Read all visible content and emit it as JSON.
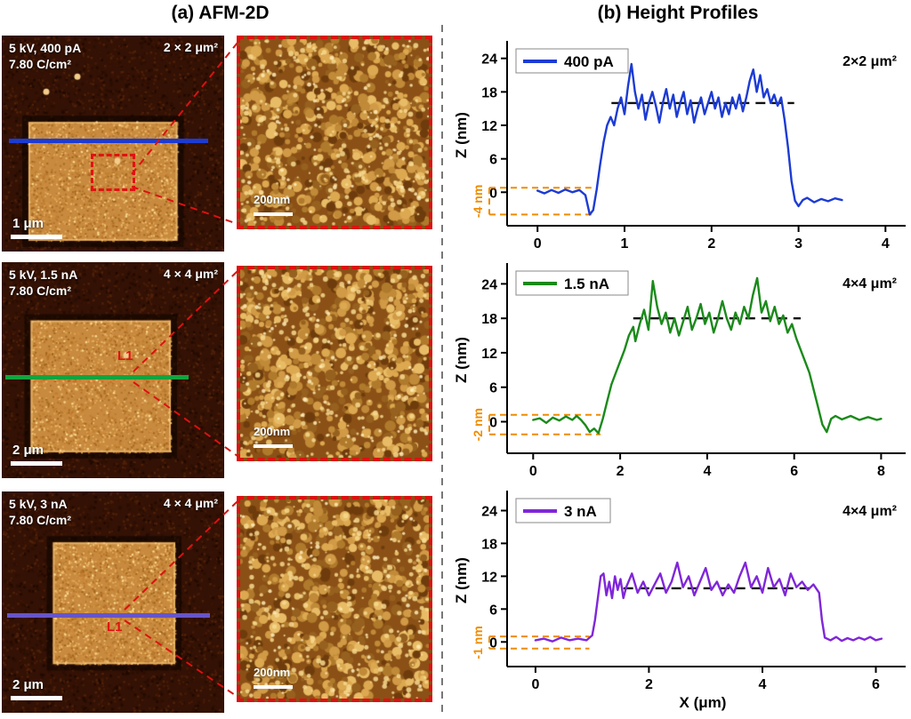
{
  "panels": {
    "a_title": "(a) AFM-2D",
    "b_title": "(b) Height Profiles"
  },
  "colors": {
    "annotation_orange": "#F08C00",
    "dashed_red": "#DD1111",
    "plateau_dash": "#111111"
  },
  "afm_rows": [
    {
      "params_line1": "5 kV, 400 pA",
      "params_line2": "7.80 C/cm²",
      "area_label": "2 × 2 μm²",
      "scale_bar_label": "1 μm",
      "inset_scale_label": "200nm",
      "profile_line_color": "#1C3BD4",
      "profile_label": ""
    },
    {
      "params_line1": "5 kV, 1.5 nA",
      "params_line2": "7.80 C/cm²",
      "area_label": "4 × 4 μm²",
      "scale_bar_label": "2 μm",
      "inset_scale_label": "200nm",
      "profile_line_color": "#12A43E",
      "profile_label": "L1"
    },
    {
      "params_line1": "5 kV, 3 nA",
      "params_line2": "7.80 C/cm²",
      "area_label": "4 × 4 μm²",
      "scale_bar_label": "2 μm",
      "inset_scale_label": "200nm",
      "profile_line_color": "#6655C8",
      "profile_label": "L1"
    }
  ],
  "chart_data": [
    {
      "type": "line",
      "legend": "400 pA",
      "color": "#1C3BD4",
      "area_annotation": "2×2 μm²",
      "ylabel": "Z (nm)",
      "xlabel": "",
      "xticks": [
        0,
        1,
        2,
        3,
        4
      ],
      "yticks": [
        0,
        6,
        12,
        18,
        24
      ],
      "xlim": [
        -0.35,
        4.15
      ],
      "ylim": [
        -6,
        26.5
      ],
      "plateau": {
        "z": 16,
        "x0": 0.85,
        "x1": 2.95
      },
      "step": {
        "label": "-4 nm",
        "x1": 0.62,
        "z0": -4,
        "z1": 0.8
      },
      "points": [
        [
          0,
          0.3
        ],
        [
          0.08,
          -0.2
        ],
        [
          0.16,
          0.4
        ],
        [
          0.24,
          -0.1
        ],
        [
          0.32,
          0.5
        ],
        [
          0.4,
          0
        ],
        [
          0.48,
          0.4
        ],
        [
          0.55,
          -0.5
        ],
        [
          0.6,
          -4
        ],
        [
          0.64,
          -3.2
        ],
        [
          0.68,
          0.5
        ],
        [
          0.72,
          5
        ],
        [
          0.76,
          9
        ],
        [
          0.8,
          12
        ],
        [
          0.84,
          13.5
        ],
        [
          0.88,
          12
        ],
        [
          0.92,
          15
        ],
        [
          0.96,
          17
        ],
        [
          1,
          14
        ],
        [
          1.04,
          19
        ],
        [
          1.08,
          23
        ],
        [
          1.12,
          18
        ],
        [
          1.16,
          15
        ],
        [
          1.2,
          17.5
        ],
        [
          1.24,
          13
        ],
        [
          1.28,
          16
        ],
        [
          1.32,
          18
        ],
        [
          1.36,
          15.5
        ],
        [
          1.4,
          12.5
        ],
        [
          1.44,
          16
        ],
        [
          1.48,
          18.5
        ],
        [
          1.52,
          15
        ],
        [
          1.56,
          17.5
        ],
        [
          1.6,
          13.5
        ],
        [
          1.64,
          16
        ],
        [
          1.68,
          18
        ],
        [
          1.72,
          14
        ],
        [
          1.76,
          16.5
        ],
        [
          1.8,
          12.5
        ],
        [
          1.84,
          15
        ],
        [
          1.88,
          17
        ],
        [
          1.92,
          14
        ],
        [
          1.96,
          16
        ],
        [
          2,
          18
        ],
        [
          2.04,
          15
        ],
        [
          2.08,
          17
        ],
        [
          2.12,
          13.5
        ],
        [
          2.16,
          16
        ],
        [
          2.2,
          14
        ],
        [
          2.24,
          17
        ],
        [
          2.28,
          15
        ],
        [
          2.32,
          17.5
        ],
        [
          2.36,
          14.5
        ],
        [
          2.4,
          17
        ],
        [
          2.44,
          20
        ],
        [
          2.48,
          22
        ],
        [
          2.52,
          18
        ],
        [
          2.56,
          21
        ],
        [
          2.6,
          17
        ],
        [
          2.64,
          18.5
        ],
        [
          2.68,
          16
        ],
        [
          2.72,
          17.5
        ],
        [
          2.76,
          15.5
        ],
        [
          2.8,
          17
        ],
        [
          2.84,
          13
        ],
        [
          2.88,
          8
        ],
        [
          2.92,
          2
        ],
        [
          2.96,
          -1.5
        ],
        [
          3,
          -2.5
        ],
        [
          3.05,
          -1.4
        ],
        [
          3.1,
          -1
        ],
        [
          3.18,
          -1.8
        ],
        [
          3.26,
          -1.2
        ],
        [
          3.34,
          -1.6
        ],
        [
          3.42,
          -1.1
        ],
        [
          3.5,
          -1.4
        ]
      ]
    },
    {
      "type": "line",
      "legend": "1.5 nA",
      "color": "#1A8A1A",
      "area_annotation": "4×4 μm²",
      "ylabel": "Z (nm)",
      "xlabel": "",
      "xticks": [
        0,
        2,
        4,
        6,
        8
      ],
      "yticks": [
        0,
        6,
        12,
        18,
        24
      ],
      "xlim": [
        -0.6,
        8.4
      ],
      "ylim": [
        -5.5,
        27
      ],
      "plateau": {
        "z": 18,
        "x0": 2.3,
        "x1": 6.15
      },
      "step": {
        "label": "-2 nm",
        "x1": 1.55,
        "z0": -2.2,
        "z1": 1.2
      },
      "points": [
        [
          0,
          0.3
        ],
        [
          0.15,
          0.6
        ],
        [
          0.3,
          -0.2
        ],
        [
          0.45,
          0.7
        ],
        [
          0.6,
          0.2
        ],
        [
          0.75,
          0.9
        ],
        [
          0.9,
          0.3
        ],
        [
          1,
          1
        ],
        [
          1.1,
          0.3
        ],
        [
          1.2,
          -0.6
        ],
        [
          1.3,
          -1.8
        ],
        [
          1.4,
          -1.2
        ],
        [
          1.5,
          -2
        ],
        [
          1.6,
          0.5
        ],
        [
          1.7,
          3.5
        ],
        [
          1.8,
          6.5
        ],
        [
          1.9,
          8.5
        ],
        [
          2,
          10.5
        ],
        [
          2.1,
          12.5
        ],
        [
          2.2,
          15
        ],
        [
          2.3,
          16.5
        ],
        [
          2.35,
          14
        ],
        [
          2.45,
          17
        ],
        [
          2.55,
          19.5
        ],
        [
          2.65,
          16
        ],
        [
          2.75,
          24.5
        ],
        [
          2.85,
          20
        ],
        [
          2.95,
          17
        ],
        [
          3.05,
          19
        ],
        [
          3.15,
          15.5
        ],
        [
          3.25,
          18
        ],
        [
          3.35,
          15
        ],
        [
          3.45,
          17.5
        ],
        [
          3.55,
          20
        ],
        [
          3.65,
          16
        ],
        [
          3.75,
          18
        ],
        [
          3.85,
          20.5
        ],
        [
          3.95,
          17
        ],
        [
          4.05,
          19
        ],
        [
          4.15,
          15.5
        ],
        [
          4.25,
          18
        ],
        [
          4.35,
          21
        ],
        [
          4.45,
          18
        ],
        [
          4.55,
          16
        ],
        [
          4.65,
          19
        ],
        [
          4.75,
          17
        ],
        [
          4.85,
          20
        ],
        [
          4.95,
          18
        ],
        [
          5.05,
          22
        ],
        [
          5.15,
          25
        ],
        [
          5.25,
          19
        ],
        [
          5.35,
          21
        ],
        [
          5.45,
          17.5
        ],
        [
          5.55,
          20
        ],
        [
          5.65,
          17
        ],
        [
          5.75,
          18.5
        ],
        [
          5.85,
          15.5
        ],
        [
          5.95,
          17
        ],
        [
          6.05,
          14.5
        ],
        [
          6.15,
          12.5
        ],
        [
          6.25,
          10.5
        ],
        [
          6.35,
          8.5
        ],
        [
          6.45,
          5.5
        ],
        [
          6.55,
          2.5
        ],
        [
          6.65,
          -0.5
        ],
        [
          6.75,
          -1.8
        ],
        [
          6.85,
          0.5
        ],
        [
          6.95,
          1
        ],
        [
          7.1,
          0.4
        ],
        [
          7.3,
          1
        ],
        [
          7.5,
          0.3
        ],
        [
          7.7,
          0.8
        ],
        [
          7.9,
          0.3
        ],
        [
          8,
          0.5
        ]
      ]
    },
    {
      "type": "line",
      "legend": "3 nA",
      "color": "#8026D9",
      "area_annotation": "4×4 μm²",
      "ylabel": "Z (nm)",
      "xlabel": "X (μm)",
      "xticks": [
        0,
        2,
        4,
        6
      ],
      "yticks": [
        0,
        6,
        12,
        18,
        24
      ],
      "xlim": [
        -0.5,
        6.4
      ],
      "ylim": [
        -4.5,
        27
      ],
      "plateau": {
        "z": 9.8,
        "x0": 1.55,
        "x1": 4.95
      },
      "step": {
        "label": "-1 nm",
        "x1": 0.95,
        "z0": -1.2,
        "z1": 1.0
      },
      "points": [
        [
          0,
          0.3
        ],
        [
          0.15,
          0.6
        ],
        [
          0.3,
          0.1
        ],
        [
          0.45,
          0.8
        ],
        [
          0.6,
          0.3
        ],
        [
          0.75,
          0.6
        ],
        [
          0.9,
          0.3
        ],
        [
          1,
          1.2
        ],
        [
          1.05,
          4
        ],
        [
          1.1,
          8
        ],
        [
          1.15,
          12
        ],
        [
          1.2,
          12.5
        ],
        [
          1.25,
          8.5
        ],
        [
          1.3,
          11
        ],
        [
          1.35,
          8
        ],
        [
          1.4,
          12
        ],
        [
          1.45,
          9.5
        ],
        [
          1.5,
          11.5
        ],
        [
          1.55,
          8
        ],
        [
          1.6,
          10
        ],
        [
          1.7,
          12.5
        ],
        [
          1.8,
          9
        ],
        [
          1.9,
          11
        ],
        [
          2,
          8.5
        ],
        [
          2.1,
          10.5
        ],
        [
          2.2,
          12.5
        ],
        [
          2.3,
          9
        ],
        [
          2.4,
          11
        ],
        [
          2.5,
          14.5
        ],
        [
          2.6,
          10
        ],
        [
          2.7,
          12
        ],
        [
          2.8,
          8.5
        ],
        [
          2.9,
          11
        ],
        [
          3,
          13.5
        ],
        [
          3.1,
          9.5
        ],
        [
          3.2,
          11
        ],
        [
          3.3,
          8.5
        ],
        [
          3.4,
          10.5
        ],
        [
          3.5,
          9
        ],
        [
          3.6,
          12
        ],
        [
          3.7,
          14.5
        ],
        [
          3.8,
          10
        ],
        [
          3.9,
          12
        ],
        [
          4,
          9
        ],
        [
          4.1,
          13.5
        ],
        [
          4.2,
          10
        ],
        [
          4.3,
          11.5
        ],
        [
          4.4,
          8.5
        ],
        [
          4.5,
          12.5
        ],
        [
          4.6,
          10
        ],
        [
          4.7,
          11
        ],
        [
          4.8,
          9.5
        ],
        [
          4.9,
          10.5
        ],
        [
          5,
          9
        ],
        [
          5.05,
          4
        ],
        [
          5.1,
          0.8
        ],
        [
          5.2,
          0.3
        ],
        [
          5.3,
          0.9
        ],
        [
          5.4,
          0.2
        ],
        [
          5.5,
          0.7
        ],
        [
          5.6,
          0.3
        ],
        [
          5.7,
          0.8
        ],
        [
          5.8,
          0.4
        ],
        [
          5.9,
          0.9
        ],
        [
          6,
          0.3
        ],
        [
          6.1,
          0.6
        ]
      ]
    }
  ]
}
